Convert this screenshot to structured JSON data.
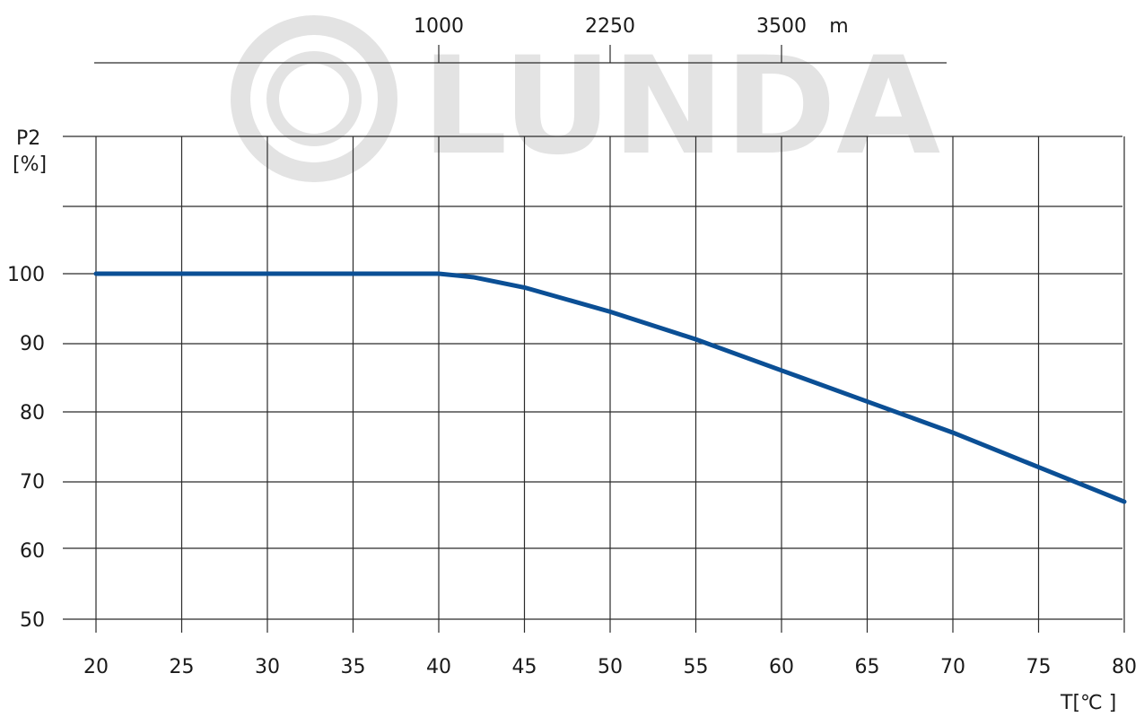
{
  "chart_data": {
    "type": "line",
    "watermark": "LUNDA",
    "xlabel": "T[℃ ]",
    "ylabel_line1": "P2",
    "ylabel_line2": "[%]",
    "top_axis_unit": "m",
    "x_ticks": [
      20,
      25,
      30,
      35,
      40,
      45,
      50,
      55,
      60,
      65,
      70,
      75,
      80
    ],
    "y_ticks": [
      50,
      60,
      70,
      80,
      90,
      100
    ],
    "xlim": [
      20,
      80
    ],
    "ylim": [
      46,
      120
    ],
    "top_axis": [
      {
        "label": "1000",
        "x": 40
      },
      {
        "label": "2250",
        "x": 50
      },
      {
        "label": "3500",
        "x": 60
      }
    ],
    "grid": true,
    "line_color": "#0b4f95",
    "series": [
      {
        "x": [
          20,
          40,
          42,
          45,
          50,
          55,
          60,
          65,
          70,
          75,
          80
        ],
        "values": [
          100,
          100,
          99.5,
          98,
          94.5,
          90.5,
          86,
          81.5,
          77,
          72,
          67
        ]
      }
    ]
  }
}
